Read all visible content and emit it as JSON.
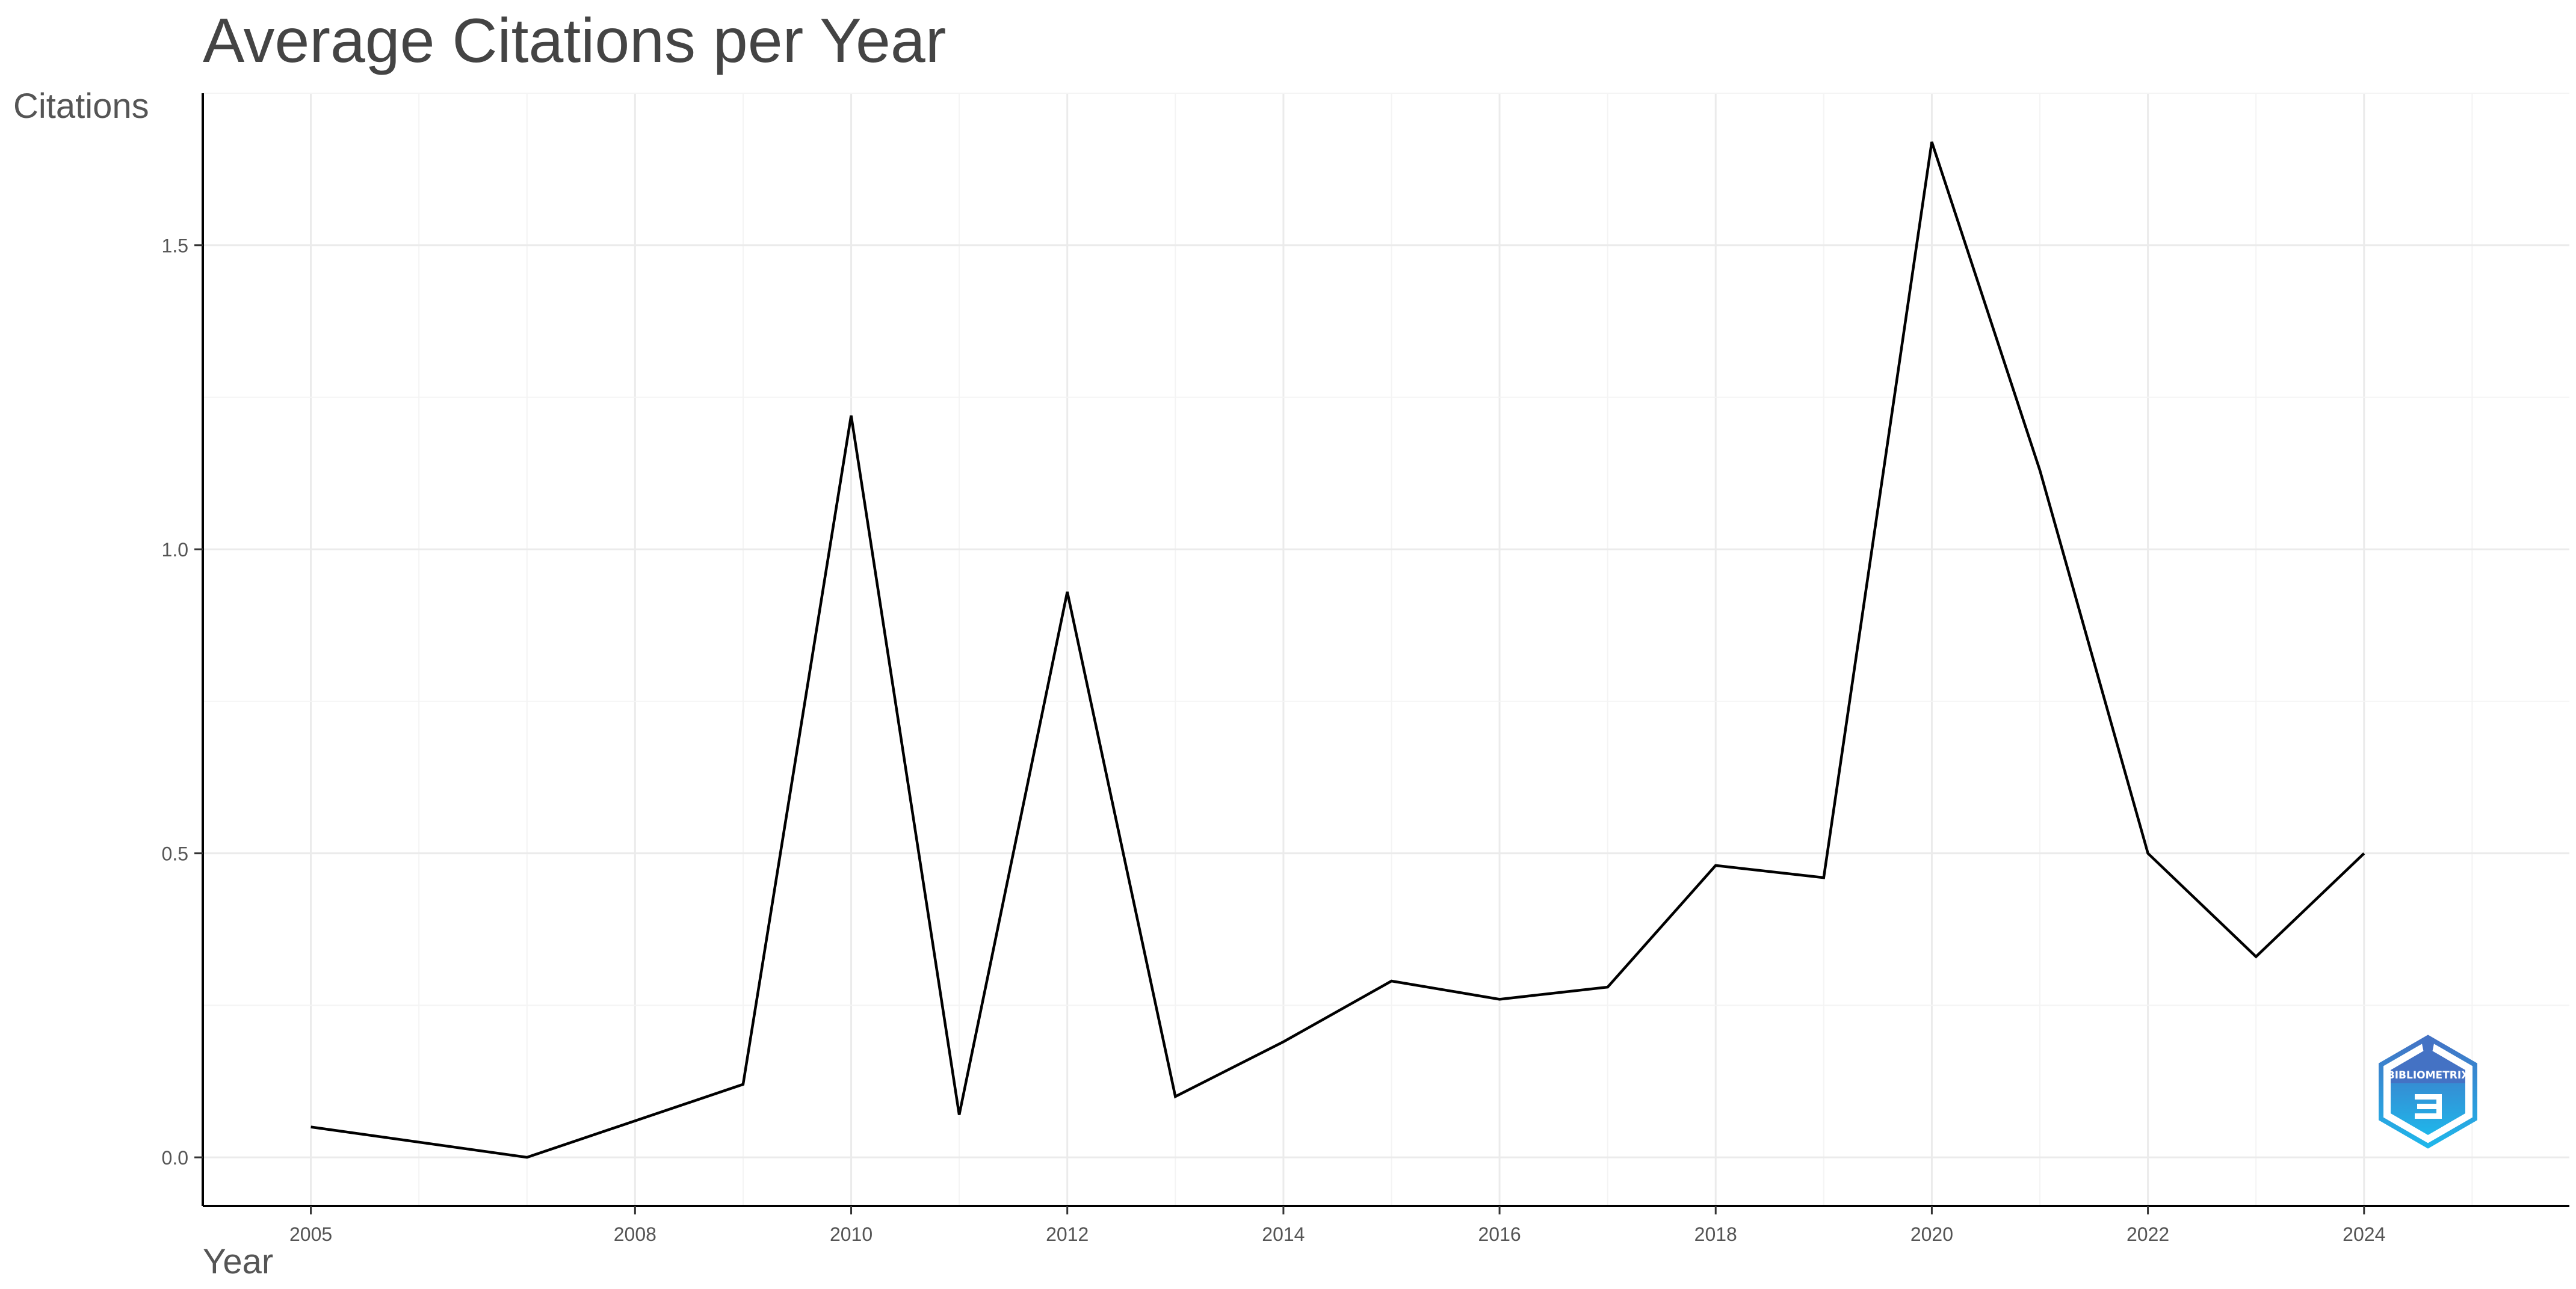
{
  "chart_data": {
    "type": "line",
    "title": "Average Citations per Year",
    "xlabel": "Year",
    "ylabel": "Citations",
    "x_ticks": [
      2005,
      2008,
      2010,
      2012,
      2014,
      2016,
      2018,
      2020,
      2022,
      2024
    ],
    "y_ticks": [
      "0.0",
      "0.5",
      "1.0",
      "1.5"
    ],
    "xlim": [
      2004.0,
      2025.9
    ],
    "ylim": [
      -0.08,
      1.75
    ],
    "grid": true,
    "line_color": "#000000",
    "series": [
      {
        "x": [
          2005,
          2007,
          2009,
          2010,
          2011,
          2012,
          2013,
          2014,
          2015,
          2016,
          2017,
          2018,
          2019,
          2020,
          2021,
          2022,
          2023,
          2024
        ],
        "values": [
          0.05,
          0.0,
          0.12,
          1.22,
          0.07,
          0.93,
          0.1,
          0.19,
          0.29,
          0.26,
          0.28,
          0.48,
          0.46,
          1.67,
          1.13,
          0.5,
          0.33,
          0.5
        ]
      }
    ]
  },
  "watermark": {
    "text": "BIBLIOMETRIX",
    "icon": "bibliometrix-logo-icon",
    "colors": [
      "#4472c4",
      "#1fb6ea"
    ]
  }
}
